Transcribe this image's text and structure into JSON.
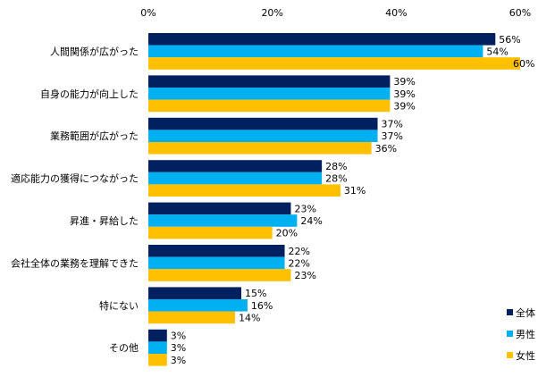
{
  "chart_data": {
    "type": "bar",
    "orientation": "horizontal",
    "title": "",
    "xlabel": "",
    "ylabel": "",
    "xlim": [
      0,
      60
    ],
    "x_ticks": [
      "0%",
      "20%",
      "40%",
      "60%"
    ],
    "x_tick_values": [
      0,
      20,
      40,
      60
    ],
    "grid": false,
    "legend_position": "bottom-right",
    "categories": [
      "人間関係が広がった",
      "自身の能力が向上した",
      "業務範囲が広がった",
      "適応能力の獲得につながった",
      "昇進・昇給した",
      "会社全体の業務を理解できた",
      "特にない",
      "その他"
    ],
    "series": [
      {
        "name": "全体",
        "color": "#002060",
        "values": [
          56,
          39,
          37,
          28,
          23,
          22,
          15,
          3
        ]
      },
      {
        "name": "男性",
        "color": "#00B0F0",
        "values": [
          54,
          39,
          37,
          28,
          24,
          22,
          16,
          3
        ]
      },
      {
        "name": "女性",
        "color": "#FFC000",
        "values": [
          60,
          39,
          36,
          31,
          20,
          23,
          14,
          3
        ]
      }
    ],
    "value_suffix": "%"
  }
}
